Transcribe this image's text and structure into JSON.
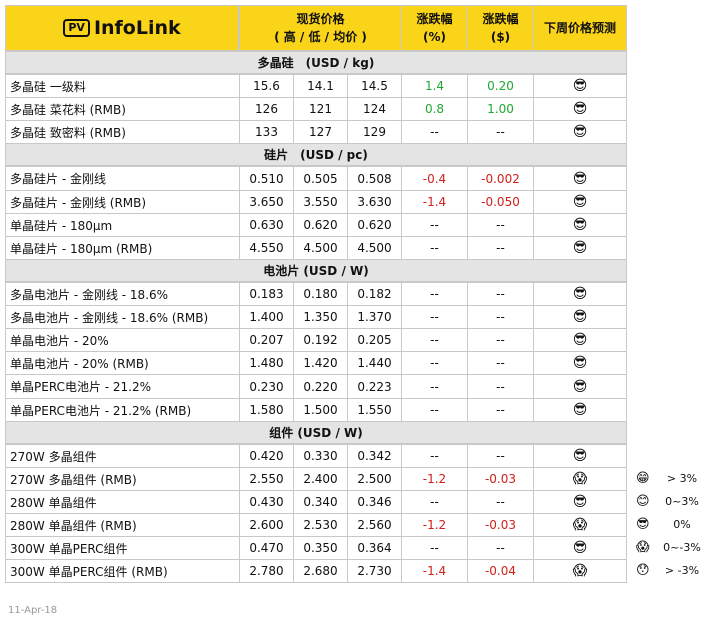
{
  "logo": {
    "badge": "PV",
    "name": "InfoLink"
  },
  "columns": {
    "price": [
      "现货价格",
      "( 高 / 低 / 均价 )"
    ],
    "pct": [
      "涨跌幅",
      "(%)"
    ],
    "usd": [
      "涨跌幅",
      "($)"
    ],
    "forecast": "下周价格预测"
  },
  "sections": [
    {
      "title": "多晶硅　(USD / kg)",
      "rows": [
        {
          "name": "多晶硅 一级料",
          "high": "15.6",
          "low": "14.1",
          "avg": "14.5",
          "pct": "1.4",
          "usd": "0.20",
          "forecast": "😎"
        },
        {
          "name": "多晶硅 菜花料 (RMB)",
          "high": "126",
          "low": "121",
          "avg": "124",
          "pct": "0.8",
          "usd": "1.00",
          "forecast": "😎"
        },
        {
          "name": "多晶硅 致密料 (RMB)",
          "high": "133",
          "low": "127",
          "avg": "129",
          "pct": "--",
          "usd": "--",
          "forecast": "😎"
        }
      ]
    },
    {
      "title": "硅片　(USD / pc)",
      "rows": [
        {
          "name": "多晶硅片 - 金刚线",
          "high": "0.510",
          "low": "0.505",
          "avg": "0.508",
          "pct": "-0.4",
          "usd": "-0.002",
          "forecast": "😎"
        },
        {
          "name": "多晶硅片 - 金刚线 (RMB)",
          "high": "3.650",
          "low": "3.550",
          "avg": "3.630",
          "pct": "-1.4",
          "usd": "-0.050",
          "forecast": "😎"
        },
        {
          "name": "单晶硅片 - 180μm",
          "high": "0.630",
          "low": "0.620",
          "avg": "0.620",
          "pct": "--",
          "usd": "--",
          "forecast": "😎"
        },
        {
          "name": "单晶硅片 - 180μm (RMB)",
          "high": "4.550",
          "low": "4.500",
          "avg": "4.500",
          "pct": "--",
          "usd": "--",
          "forecast": "😎"
        }
      ]
    },
    {
      "title": "电池片 (USD / W)",
      "rows": [
        {
          "name": "多晶电池片 - 金刚线 - 18.6%",
          "high": "0.183",
          "low": "0.180",
          "avg": "0.182",
          "pct": "--",
          "usd": "--",
          "forecast": "😎"
        },
        {
          "name": "多晶电池片 - 金刚线 - 18.6% (RMB)",
          "high": "1.400",
          "low": "1.350",
          "avg": "1.370",
          "pct": "--",
          "usd": "--",
          "forecast": "😎"
        },
        {
          "name": "单晶电池片 - 20%",
          "high": "0.207",
          "low": "0.192",
          "avg": "0.205",
          "pct": "--",
          "usd": "--",
          "forecast": "😎"
        },
        {
          "name": "单晶电池片 - 20% (RMB)",
          "high": "1.480",
          "low": "1.420",
          "avg": "1.440",
          "pct": "--",
          "usd": "--",
          "forecast": "😎"
        },
        {
          "name": "单晶PERC电池片 - 21.2%",
          "high": "0.230",
          "low": "0.220",
          "avg": "0.223",
          "pct": "--",
          "usd": "--",
          "forecast": "😎"
        },
        {
          "name": "单晶PERC电池片 - 21.2% (RMB)",
          "high": "1.580",
          "low": "1.500",
          "avg": "1.550",
          "pct": "--",
          "usd": "--",
          "forecast": "😎"
        }
      ]
    },
    {
      "title": "组件 (USD / W)",
      "rows": [
        {
          "name": "270W 多晶组件",
          "high": "0.420",
          "low": "0.330",
          "avg": "0.342",
          "pct": "--",
          "usd": "--",
          "forecast": "😎"
        },
        {
          "name": "270W 多晶组件 (RMB)",
          "high": "2.550",
          "low": "2.400",
          "avg": "2.500",
          "pct": "-1.2",
          "usd": "-0.03",
          "forecast": "😱"
        },
        {
          "name": "280W 单晶组件",
          "high": "0.430",
          "low": "0.340",
          "avg": "0.346",
          "pct": "--",
          "usd": "--",
          "forecast": "😎"
        },
        {
          "name": "280W 单晶组件 (RMB)",
          "high": "2.600",
          "low": "2.530",
          "avg": "2.560",
          "pct": "-1.2",
          "usd": "-0.03",
          "forecast": "😱"
        },
        {
          "name": "300W 单晶PERC组件",
          "high": "0.470",
          "low": "0.350",
          "avg": "0.364",
          "pct": "--",
          "usd": "--",
          "forecast": "😎"
        },
        {
          "name": "300W 单晶PERC组件 (RMB)",
          "high": "2.780",
          "low": "2.680",
          "avg": "2.730",
          "pct": "-1.4",
          "usd": "-0.04",
          "forecast": "😱"
        }
      ]
    }
  ],
  "legend": [
    {
      "icon": "😁",
      "label": "> 3%"
    },
    {
      "icon": "😊",
      "label": "0~3%"
    },
    {
      "icon": "😎",
      "label": "0%"
    },
    {
      "icon": "😱",
      "label": "0~-3%"
    },
    {
      "icon": "😯",
      "label": "> -3%"
    }
  ],
  "date": "11-Apr-18"
}
